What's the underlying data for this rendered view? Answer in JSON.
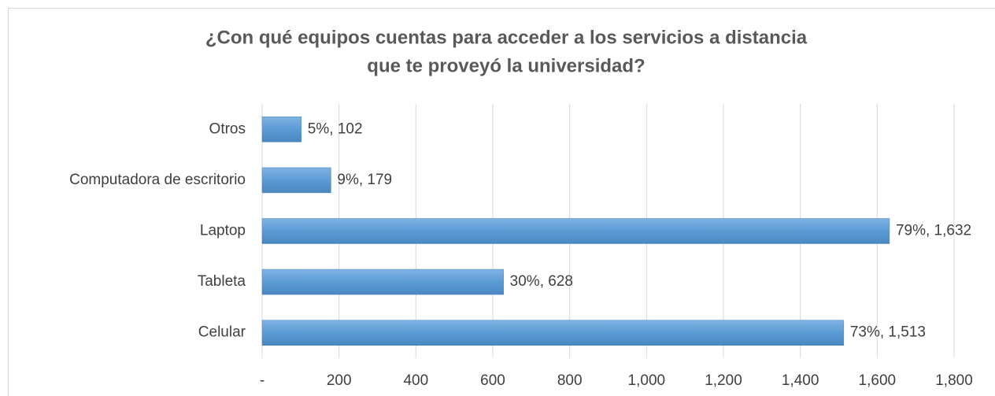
{
  "chart_data": {
    "type": "bar",
    "orientation": "horizontal",
    "title": [
      "¿Con qué equipos cuentas para acceder a los servicios a distancia",
      "que te proveyó la universidad?"
    ],
    "categories": [
      "Otros",
      "Computadora de escritorio",
      "Laptop",
      "Tableta",
      "Celular"
    ],
    "values": [
      102,
      179,
      1632,
      628,
      1513
    ],
    "value_labels": [
      "5%,  102",
      "9%,  179",
      "79%,  1,632",
      "30%,  628",
      "73%,  1,513"
    ],
    "color": "#5b9bd5",
    "xlim": [
      0,
      1800
    ],
    "xticks": [
      {
        "value": 0,
        "label": "-"
      },
      200,
      400,
      600,
      800,
      {
        "value": 1000,
        "label": "1,000"
      },
      {
        "value": 1200,
        "label": "1,200"
      },
      {
        "value": 1400,
        "label": "1,400"
      },
      {
        "value": 1600,
        "label": "1,600"
      },
      {
        "value": 1800,
        "label": "1,800"
      }
    ],
    "grid": true
  }
}
